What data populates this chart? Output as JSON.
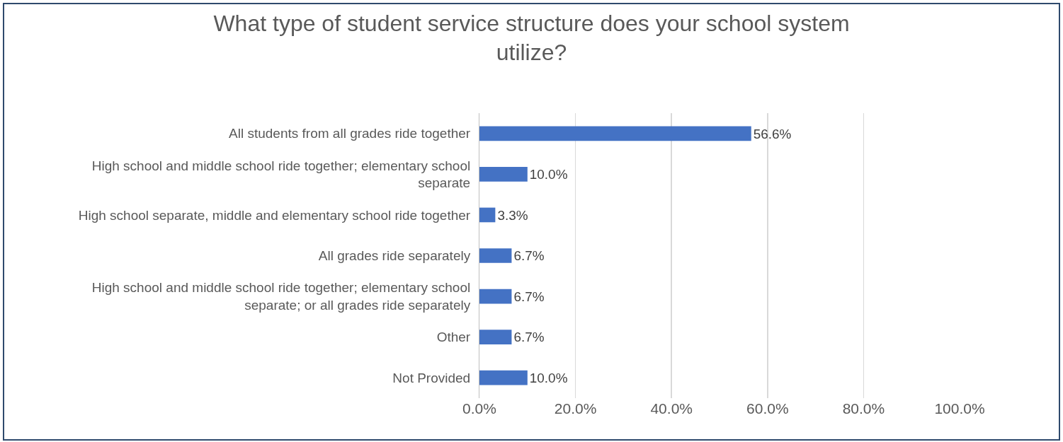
{
  "chart_data": {
    "type": "bar",
    "orientation": "horizontal",
    "title": "What type of student service structure does your school system utilize?",
    "categories": [
      "All students from all grades ride together",
      "High school and middle school ride together; elementary school separate",
      "High school separate, middle and elementary school ride together",
      "All grades ride separately",
      "High school and middle school ride together; elementary school separate; or all grades ride separately",
      "Other",
      "Not Provided"
    ],
    "values": [
      56.6,
      10.0,
      3.3,
      6.7,
      6.7,
      6.7,
      10.0
    ],
    "value_labels": [
      "56.6%",
      "10.0%",
      "3.3%",
      "6.7%",
      "6.7%",
      "6.7%",
      "10.0%"
    ],
    "color": "#4472c4",
    "xlim": [
      0,
      100
    ],
    "xticks": [
      {
        "value": 0,
        "label": "0.0%"
      },
      {
        "value": 20,
        "label": "20.0%"
      },
      {
        "value": 40,
        "label": "40.0%"
      },
      {
        "value": 60,
        "label": "60.0%"
      },
      {
        "value": 80,
        "label": "80.0%"
      },
      {
        "value": 100,
        "label": "100.0%"
      }
    ],
    "grid": "x"
  }
}
